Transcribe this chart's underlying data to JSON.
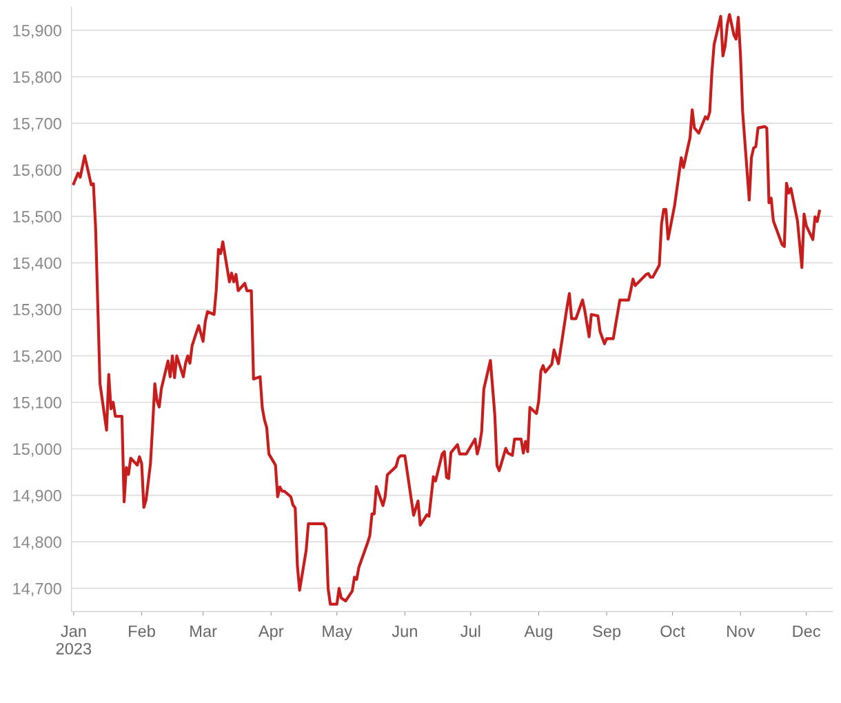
{
  "chart_data": {
    "type": "line",
    "grid": "y",
    "marker": "none",
    "line_style": "solid",
    "xlim": [
      "2022-12-31",
      "2023-12-13"
    ],
    "ylim": [
      14650,
      15950
    ],
    "xticks": [
      {
        "value": "2023-01-01",
        "label": "Jan\n2023"
      },
      {
        "value": "2023-02-01",
        "label": "Feb"
      },
      {
        "value": "2023-03-01",
        "label": "Mar"
      },
      {
        "value": "2023-04-01",
        "label": "Apr"
      },
      {
        "value": "2023-05-01",
        "label": "May"
      },
      {
        "value": "2023-06-01",
        "label": "Jun"
      },
      {
        "value": "2023-07-01",
        "label": "Jul"
      },
      {
        "value": "2023-08-01",
        "label": "Aug"
      },
      {
        "value": "2023-09-01",
        "label": "Sep"
      },
      {
        "value": "2023-10-01",
        "label": "Oct"
      },
      {
        "value": "2023-11-01",
        "label": "Nov"
      },
      {
        "value": "2023-12-01",
        "label": "Dec"
      }
    ],
    "yticks": [
      {
        "value": 14700,
        "label": "14,700"
      },
      {
        "value": 14800,
        "label": "14,800"
      },
      {
        "value": 14900,
        "label": "14,900"
      },
      {
        "value": 15000,
        "label": "15,000"
      },
      {
        "value": 15100,
        "label": "15,100"
      },
      {
        "value": 15200,
        "label": "15,200"
      },
      {
        "value": 15300,
        "label": "15,300"
      },
      {
        "value": 15400,
        "label": "15,400"
      },
      {
        "value": 15500,
        "label": "15,500"
      },
      {
        "value": 15600,
        "label": "15,600"
      },
      {
        "value": 15700,
        "label": "15,700"
      },
      {
        "value": 15800,
        "label": "15,800"
      },
      {
        "value": 15900,
        "label": "15,900"
      }
    ],
    "series": [
      {
        "color": "#c71e1d",
        "x": [
          "2023-01-01",
          "2023-01-03",
          "2023-01-04",
          "2023-01-06",
          "2023-01-09",
          "2023-01-10",
          "2023-01-11",
          "2023-01-13",
          "2023-01-16",
          "2023-01-17",
          "2023-01-18",
          "2023-01-19",
          "2023-01-20",
          "2023-01-23",
          "2023-01-24",
          "2023-01-25",
          "2023-01-26",
          "2023-01-27",
          "2023-01-30",
          "2023-01-31",
          "2023-02-01",
          "2023-02-02",
          "2023-02-03",
          "2023-02-05",
          "2023-02-06",
          "2023-02-07",
          "2023-02-08",
          "2023-02-09",
          "2023-02-10",
          "2023-02-13",
          "2023-02-14",
          "2023-02-15",
          "2023-02-16",
          "2023-02-17",
          "2023-02-20",
          "2023-02-21",
          "2023-02-22",
          "2023-02-23",
          "2023-02-24",
          "2023-02-27",
          "2023-03-01",
          "2023-03-02",
          "2023-03-03",
          "2023-03-06",
          "2023-03-07",
          "2023-03-08",
          "2023-03-09",
          "2023-03-10",
          "2023-03-13",
          "2023-03-14",
          "2023-03-15",
          "2023-03-16",
          "2023-03-17",
          "2023-03-20",
          "2023-03-21",
          "2023-03-23",
          "2023-03-24",
          "2023-03-27",
          "2023-03-28",
          "2023-03-29",
          "2023-03-30",
          "2023-03-31",
          "2023-04-03",
          "2023-04-04",
          "2023-04-05",
          "2023-04-06",
          "2023-04-07",
          "2023-04-10",
          "2023-04-11",
          "2023-04-12",
          "2023-04-13",
          "2023-04-14",
          "2023-04-17",
          "2023-04-18",
          "2023-04-25",
          "2023-04-26",
          "2023-04-27",
          "2023-04-28",
          "2023-05-01",
          "2023-05-02",
          "2023-05-03",
          "2023-05-05",
          "2023-05-08",
          "2023-05-09",
          "2023-05-10",
          "2023-05-11",
          "2023-05-15",
          "2023-05-16",
          "2023-05-17",
          "2023-05-18",
          "2023-05-19",
          "2023-05-22",
          "2023-05-23",
          "2023-05-24",
          "2023-05-28",
          "2023-05-29",
          "2023-05-30",
          "2023-06-01",
          "2023-06-05",
          "2023-06-07",
          "2023-06-08",
          "2023-06-11",
          "2023-06-12",
          "2023-06-14",
          "2023-06-15",
          "2023-06-18",
          "2023-06-19",
          "2023-06-20",
          "2023-06-21",
          "2023-06-22",
          "2023-06-25",
          "2023-06-26",
          "2023-06-29",
          "2023-07-03",
          "2023-07-04",
          "2023-07-05",
          "2023-07-06",
          "2023-07-07",
          "2023-07-10",
          "2023-07-12",
          "2023-07-13",
          "2023-07-14",
          "2023-07-17",
          "2023-07-18",
          "2023-07-20",
          "2023-07-21",
          "2023-07-24",
          "2023-07-25",
          "2023-07-26",
          "2023-07-27",
          "2023-07-28",
          "2023-07-31",
          "2023-08-01",
          "2023-08-02",
          "2023-08-03",
          "2023-08-04",
          "2023-08-07",
          "2023-08-08",
          "2023-08-10",
          "2023-08-14",
          "2023-08-15",
          "2023-08-16",
          "2023-08-18",
          "2023-08-21",
          "2023-08-22",
          "2023-08-24",
          "2023-08-25",
          "2023-08-28",
          "2023-08-29",
          "2023-08-31",
          "2023-09-01",
          "2023-09-04",
          "2023-09-07",
          "2023-09-11",
          "2023-09-12",
          "2023-09-13",
          "2023-09-14",
          "2023-09-19",
          "2023-09-20",
          "2023-09-21",
          "2023-09-22",
          "2023-09-25",
          "2023-09-26",
          "2023-09-27",
          "2023-09-28",
          "2023-09-29",
          "2023-10-02",
          "2023-10-05",
          "2023-10-06",
          "2023-10-09",
          "2023-10-10",
          "2023-10-11",
          "2023-10-13",
          "2023-10-16",
          "2023-10-17",
          "2023-10-18",
          "2023-10-19",
          "2023-10-20",
          "2023-10-23",
          "2023-10-24",
          "2023-10-25",
          "2023-10-26",
          "2023-10-27",
          "2023-10-29",
          "2023-10-30",
          "2023-10-31",
          "2023-11-01",
          "2023-11-02",
          "2023-11-05",
          "2023-11-06",
          "2023-11-07",
          "2023-11-08",
          "2023-11-09",
          "2023-11-12",
          "2023-11-13",
          "2023-11-14",
          "2023-11-15",
          "2023-11-16",
          "2023-11-20",
          "2023-11-21",
          "2023-11-22",
          "2023-11-23",
          "2023-11-24",
          "2023-11-27",
          "2023-11-29",
          "2023-11-30",
          "2023-12-01",
          "2023-12-04",
          "2023-12-05",
          "2023-12-06",
          "2023-12-07"
        ],
        "values": [
          15570,
          15593,
          15584,
          15630,
          15568,
          15570,
          15475,
          15140,
          15040,
          15160,
          15086,
          15100,
          15070,
          15070,
          14886,
          14960,
          14945,
          14980,
          14965,
          14983,
          14968,
          14874,
          14890,
          14968,
          15050,
          15140,
          15103,
          15090,
          15130,
          15189,
          15155,
          15200,
          15153,
          15200,
          15155,
          15184,
          15200,
          15184,
          15222,
          15265,
          15231,
          15274,
          15295,
          15289,
          15341,
          15429,
          15420,
          15445,
          15359,
          15378,
          15359,
          15375,
          15340,
          15356,
          15340,
          15340,
          15150,
          15155,
          15088,
          15062,
          15046,
          14989,
          14965,
          14897,
          14918,
          14909,
          14909,
          14897,
          14879,
          14873,
          14748,
          14696,
          14782,
          14839,
          14839,
          14830,
          14700,
          14666,
          14666,
          14700,
          14679,
          14673,
          14694,
          14724,
          14719,
          14745,
          14798,
          14813,
          14860,
          14860,
          14919,
          14878,
          14897,
          14944,
          14962,
          14980,
          14985,
          14985,
          14857,
          14888,
          14836,
          14858,
          14855,
          14940,
          14931,
          14989,
          14994,
          14939,
          14936,
          14992,
          15009,
          14989,
          14989,
          15021,
          14989,
          15007,
          15037,
          15129,
          15190,
          15073,
          14964,
          14953,
          15001,
          14991,
          14986,
          15021,
          15021,
          14991,
          15016,
          14994,
          15089,
          15076,
          15102,
          15167,
          15179,
          15165,
          15182,
          15213,
          15183,
          15307,
          15334,
          15280,
          15280,
          15320,
          15298,
          15241,
          15289,
          15286,
          15252,
          15226,
          15237,
          15237,
          15320,
          15320,
          15341,
          15365,
          15351,
          15375,
          15377,
          15369,
          15369,
          15395,
          15483,
          15515,
          15515,
          15451,
          15524,
          15626,
          15605,
          15669,
          15729,
          15690,
          15679,
          15714,
          15709,
          15724,
          15812,
          15870,
          15930,
          15845,
          15866,
          15912,
          15934,
          15890,
          15881,
          15928,
          15848,
          15724,
          15535,
          15626,
          15647,
          15650,
          15690,
          15693,
          15690,
          15529,
          15539,
          15490,
          15439,
          15435,
          15571,
          15550,
          15560,
          15490,
          15390,
          15505,
          15480,
          15450,
          15499,
          15489,
          15511
        ]
      }
    ]
  }
}
